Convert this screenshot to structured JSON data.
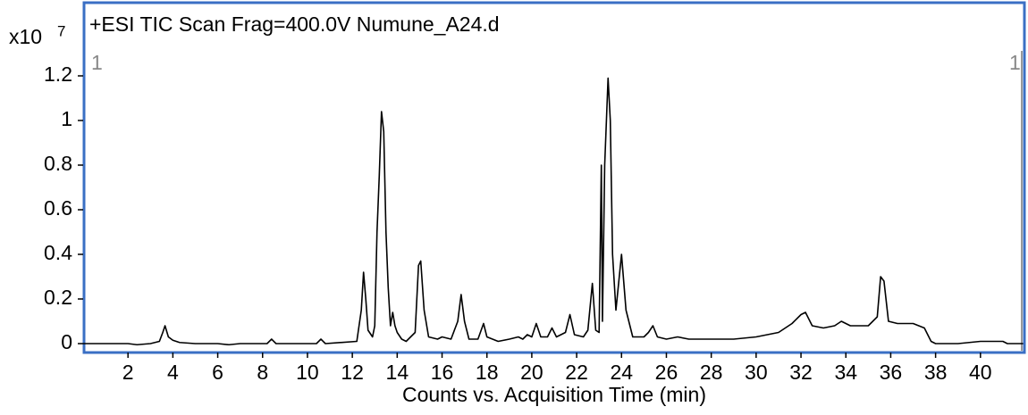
{
  "chart_data": {
    "type": "line",
    "title": "+ESI TIC Scan Frag=400.0V Numune_A24.d",
    "x_label": "Counts vs. Acquisition Time (min)",
    "y_multiplier": "x10",
    "y_exponent": "7",
    "annotations": [
      "1",
      "1"
    ],
    "color": "#000000",
    "frame_color": "#3a6fc4",
    "x": [
      0,
      2,
      2.4,
      3,
      3.4,
      3.55,
      3.65,
      3.8,
      4,
      4.3,
      5,
      6,
      6.5,
      7,
      8.2,
      8.4,
      8.6,
      10.4,
      10.6,
      10.8,
      12.2,
      12.4,
      12.5,
      12.6,
      12.7,
      12.9,
      13,
      13.1,
      13.2,
      13.3,
      13.4,
      13.5,
      13.6,
      13.7,
      13.8,
      13.9,
      14,
      14.2,
      14.4,
      14.8,
      14.95,
      15.05,
      15.2,
      15.4,
      15.8,
      16,
      16.4,
      16.7,
      16.85,
      17,
      17.2,
      17.6,
      17.85,
      18,
      18.5,
      19,
      19.4,
      19.6,
      19.8,
      20,
      20.2,
      20.4,
      20.7,
      20.9,
      21.1,
      21.5,
      21.7,
      21.9,
      22.3,
      22.5,
      22.7,
      22.85,
      23,
      23.1,
      23.15,
      23.25,
      23.4,
      23.5,
      23.6,
      23.75,
      23.9,
      24,
      24.2,
      24.5,
      25,
      25.2,
      25.4,
      25.6,
      26,
      26.5,
      27,
      28,
      29,
      30,
      31,
      31.6,
      32,
      32.2,
      32.5,
      33,
      33.5,
      33.8,
      34.2,
      34.6,
      35,
      35.4,
      35.55,
      35.7,
      35.9,
      36.3,
      37,
      37.5,
      37.8,
      38,
      39,
      40,
      41,
      41.2,
      41.9
    ],
    "values": [
      0,
      0,
      -0.005,
      0,
      0.01,
      0.05,
      0.08,
      0.03,
      0.015,
      0.005,
      0,
      0,
      -0.005,
      0,
      0,
      0.02,
      0,
      0,
      0.02,
      0,
      0.01,
      0.15,
      0.32,
      0.2,
      0.06,
      0.03,
      0.08,
      0.5,
      0.75,
      1.04,
      0.95,
      0.5,
      0.25,
      0.08,
      0.14,
      0.08,
      0.05,
      0.02,
      0.01,
      0.05,
      0.35,
      0.37,
      0.15,
      0.03,
      0.02,
      0.03,
      0.02,
      0.1,
      0.22,
      0.1,
      0.02,
      0.02,
      0.09,
      0.03,
      0.01,
      0.02,
      0.03,
      0.02,
      0.04,
      0.03,
      0.09,
      0.03,
      0.03,
      0.07,
      0.03,
      0.05,
      0.13,
      0.04,
      0.03,
      0.06,
      0.27,
      0.06,
      0.05,
      0.8,
      0.1,
      0.8,
      1.19,
      1,
      0.4,
      0.15,
      0.3,
      0.4,
      0.15,
      0.03,
      0.03,
      0.05,
      0.08,
      0.03,
      0.02,
      0.03,
      0.02,
      0.02,
      0.02,
      0.03,
      0.05,
      0.09,
      0.13,
      0.14,
      0.08,
      0.07,
      0.08,
      0.1,
      0.08,
      0.08,
      0.08,
      0.12,
      0.3,
      0.28,
      0.1,
      0.09,
      0.09,
      0.07,
      0.01,
      0,
      0,
      0.01,
      0.01,
      0,
      0
    ],
    "xlim": [
      0,
      42
    ],
    "ylim": [
      -0.032,
      1.312
    ],
    "xticks": [
      2,
      4,
      6,
      8,
      10,
      12,
      14,
      16,
      18,
      20,
      22,
      24,
      26,
      28,
      30,
      32,
      34,
      36,
      38,
      40
    ],
    "yticks": [
      0,
      0.2,
      0.4,
      0.6,
      0.8,
      1,
      1.2
    ],
    "grid": false
  }
}
